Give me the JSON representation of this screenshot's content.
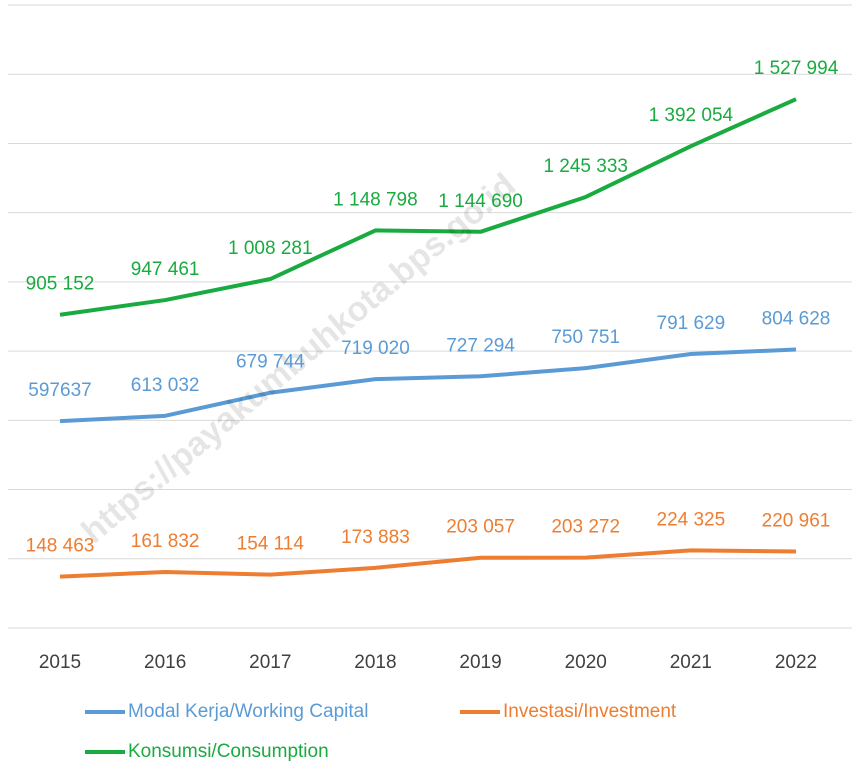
{
  "chart_data": {
    "type": "line",
    "categories": [
      "2015",
      "2016",
      "2017",
      "2018",
      "2019",
      "2020",
      "2021",
      "2022"
    ],
    "series": [
      {
        "name": "Modal Kerja/Working Capital",
        "color": "#5b9bd5",
        "values": [
          597637,
          613032,
          679744,
          719020,
          727294,
          750751,
          791629,
          804628
        ],
        "value_labels": [
          "597637",
          "613 032",
          "679 744",
          "719 020",
          "727 294",
          "750 751",
          "791 629",
          "804 628"
        ]
      },
      {
        "name": "Investasi/Investment",
        "color": "#ed7d31",
        "values": [
          148463,
          161832,
          154114,
          173883,
          203057,
          203272,
          224325,
          220961
        ],
        "value_labels": [
          "148 463",
          "161 832",
          "154 114",
          "173 883",
          "203 057",
          "203 272",
          "224 325",
          "220 961"
        ]
      },
      {
        "name": "Konsumsi/Consumption",
        "color": "#1aab40",
        "values": [
          905152,
          947461,
          1008281,
          1148798,
          1144690,
          1245333,
          1392054,
          1527994
        ],
        "value_labels": [
          "905 152",
          "947 461",
          "1 008 281",
          "1 148 798",
          "1 144 690",
          "1 245 333",
          "1 392 054",
          "1 527 994"
        ]
      }
    ],
    "ylim": [
      0,
      1800000
    ],
    "yticks": [
      0,
      200000,
      400000,
      600000,
      800000,
      1000000,
      1200000,
      1400000,
      1600000,
      1800000
    ],
    "grid": true,
    "watermark": "https://payakumbuhkota.bps.go.id"
  }
}
